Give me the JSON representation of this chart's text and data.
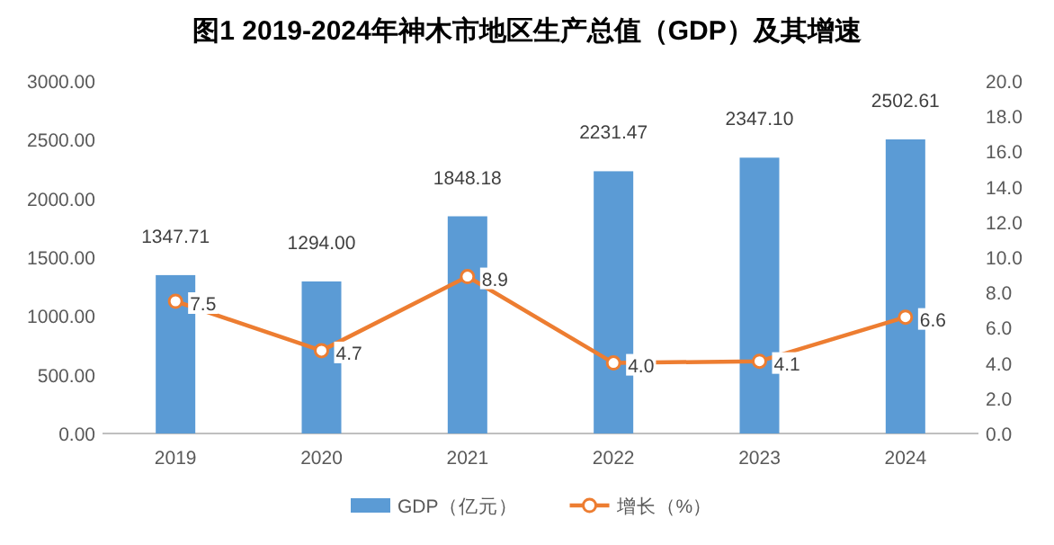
{
  "chart_data": {
    "type": "bar",
    "title": "图1 2019-2024年神木市地区生产总值（GDP）及其增速",
    "categories": [
      "2019",
      "2020",
      "2021",
      "2022",
      "2023",
      "2024"
    ],
    "series": [
      {
        "name": "GDP（亿元）",
        "color": "#5b9bd5",
        "values": [
          1347.71,
          1294.0,
          1848.18,
          2231.47,
          2347.1,
          2502.61
        ],
        "value_labels": [
          "1347.71",
          "1294.00",
          "1848.18",
          "2231.47",
          "2347.10",
          "2502.61"
        ]
      },
      {
        "name": "增长（%）",
        "type": "line",
        "axis": "y2",
        "color": "#ed7d31",
        "marker": "circle",
        "values": [
          7.5,
          4.7,
          8.9,
          4.0,
          4.1,
          6.6
        ],
        "value_labels": [
          "7.5",
          "4.7",
          "8.9",
          "4.0",
          "4.1",
          "6.6"
        ]
      }
    ],
    "ylim": [
      0,
      3000
    ],
    "yticks": [
      {
        "value": 0,
        "label": "0.00"
      },
      {
        "value": 500,
        "label": "500.00"
      },
      {
        "value": 1000,
        "label": "1000.00"
      },
      {
        "value": 1500,
        "label": "1500.00"
      },
      {
        "value": 2000,
        "label": "2000.00"
      },
      {
        "value": 2500,
        "label": "2500.00"
      },
      {
        "value": 3000,
        "label": "3000.00"
      }
    ],
    "y2lim": [
      0,
      20
    ],
    "y2ticks": [
      {
        "value": 0,
        "label": "0.0"
      },
      {
        "value": 2,
        "label": "2.0"
      },
      {
        "value": 4,
        "label": "4.0"
      },
      {
        "value": 6,
        "label": "6.0"
      },
      {
        "value": 8,
        "label": "8.0"
      },
      {
        "value": 10,
        "label": "10.0"
      },
      {
        "value": 12,
        "label": "12.0"
      },
      {
        "value": 14,
        "label": "14.0"
      },
      {
        "value": 16,
        "label": "16.0"
      },
      {
        "value": 18,
        "label": "18.0"
      },
      {
        "value": 20,
        "label": "20.0"
      }
    ],
    "legend": "bottom"
  }
}
